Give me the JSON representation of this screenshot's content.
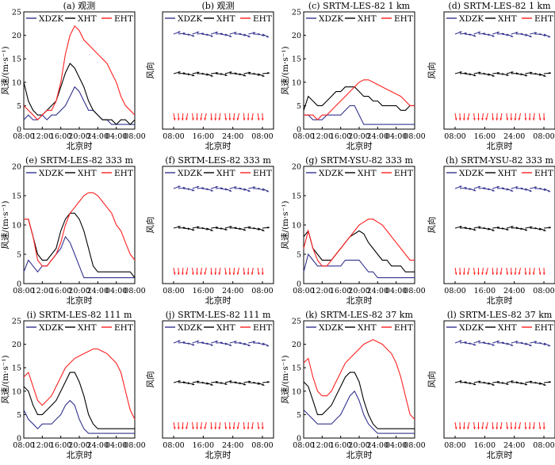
{
  "legend": [
    "XDZK",
    "XHT",
    "EHT"
  ],
  "ylabel_speed": "风速/(m·s⁻¹)",
  "ylabel_dir": "风向",
  "xlabel": "北京时",
  "colors": {
    "XDZK": "#33338f",
    "XHT": "#000000",
    "EHT": "#ff2020"
  },
  "x_ticks_time": [
    "08:00",
    "12:00",
    "16:00",
    "20:00",
    "24:00",
    "04:00",
    "08:00"
  ],
  "x_ticks_dir": [
    "08:00",
    "16:00",
    "24:00",
    "08:00"
  ],
  "panels": [
    {
      "title": "(a) 观测"
    },
    {
      "title": "(b) 观测"
    },
    {
      "title": "(c) SRTM-LES-82  1 km"
    },
    {
      "title": "(d) SRTM-LES-82  1 km"
    },
    {
      "title": "(e) SRTM-LES-82  333 m"
    },
    {
      "title": "(f) SRTM-LES-82  333 m"
    },
    {
      "title": "(g) SRTM-YSU-82  333 m"
    },
    {
      "title": "(h) SRTM-YSU-82  333 m"
    },
    {
      "title": "(i) SRTM-LES-82  111 m"
    },
    {
      "title": "(j) SRTM-LES-82  111 m"
    },
    {
      "title": "(k) SRTM-LES-82  37 km"
    },
    {
      "title": "(l) SRTM-LES-82  37 km"
    }
  ],
  "chart_data": [
    {
      "type": "line",
      "title": "(a) 观测",
      "xlabel": "北京时",
      "ylabel": "风速/(m·s⁻¹)",
      "ylim": [
        0,
        25
      ],
      "yticks": [
        0,
        5,
        10,
        15,
        20,
        25
      ],
      "xlim": [
        0,
        24
      ],
      "series": [
        {
          "name": "XDZK",
          "x": [
            0,
            1,
            2,
            3,
            4,
            5,
            6,
            7,
            8,
            9,
            10,
            11,
            12,
            13,
            14,
            15,
            16,
            17,
            18,
            19,
            20,
            21,
            22,
            23,
            24
          ],
          "values": [
            2,
            3,
            2,
            2,
            3,
            2,
            3,
            3,
            4,
            5,
            7,
            9,
            8,
            6,
            4,
            4,
            3,
            2,
            2,
            1,
            1,
            1,
            1,
            1,
            1
          ]
        },
        {
          "name": "XHT",
          "x": [
            0,
            1,
            2,
            3,
            4,
            5,
            6,
            7,
            8,
            9,
            10,
            11,
            12,
            13,
            14,
            15,
            16,
            17,
            18,
            19,
            20,
            21,
            22,
            23,
            24
          ],
          "values": [
            10,
            6,
            4,
            3,
            3,
            4,
            5,
            6,
            9,
            12,
            14,
            13,
            11,
            9,
            6,
            4,
            3,
            2,
            2,
            2,
            1,
            2,
            2,
            1,
            2
          ]
        },
        {
          "name": "EHT",
          "x": [
            0,
            1,
            2,
            3,
            4,
            5,
            6,
            7,
            8,
            9,
            10,
            11,
            12,
            13,
            14,
            15,
            16,
            17,
            18,
            19,
            20,
            21,
            22,
            23,
            24
          ],
          "values": [
            5,
            4,
            3,
            2,
            3,
            4,
            4,
            6,
            10,
            16,
            20,
            22,
            21,
            19,
            18,
            17,
            16,
            15,
            14,
            12,
            10,
            7,
            5,
            4,
            3
          ]
        }
      ]
    },
    {
      "type": "line",
      "title": "(c) SRTM-LES-82  1 km",
      "xlabel": "北京时",
      "ylabel": "风速/(m·s⁻¹)",
      "ylim": [
        0,
        25
      ],
      "yticks": [
        0,
        5,
        10,
        15,
        20,
        25
      ],
      "xlim": [
        0,
        24
      ],
      "series": [
        {
          "name": "XDZK",
          "x": [
            0,
            1,
            2,
            3,
            4,
            5,
            6,
            7,
            8,
            9,
            10,
            11,
            12,
            13,
            14,
            15,
            16,
            17,
            18,
            19,
            20,
            21,
            22,
            23,
            24
          ],
          "values": [
            3,
            3,
            2,
            2,
            2,
            3,
            3,
            3,
            3,
            4,
            5,
            5,
            3,
            1,
            1,
            1,
            1,
            1,
            1,
            1,
            1,
            1,
            1,
            1,
            1
          ]
        },
        {
          "name": "XHT",
          "x": [
            0,
            1,
            2,
            3,
            4,
            5,
            6,
            7,
            8,
            9,
            10,
            11,
            12,
            13,
            14,
            15,
            16,
            17,
            18,
            19,
            20,
            21,
            22,
            23,
            24
          ],
          "values": [
            4,
            7,
            6,
            5,
            5,
            6,
            7,
            8,
            8,
            9,
            9,
            9,
            8,
            7,
            7,
            6,
            6,
            5,
            5,
            5,
            5,
            4,
            4,
            5,
            5
          ]
        },
        {
          "name": "EHT",
          "x": [
            0,
            1,
            2,
            3,
            4,
            5,
            6,
            7,
            8,
            9,
            10,
            11,
            12,
            13,
            14,
            15,
            16,
            17,
            18,
            19,
            20,
            21,
            22,
            23,
            24
          ],
          "values": [
            3,
            3,
            3,
            2,
            3,
            3,
            4,
            5,
            6,
            7,
            8,
            9,
            10,
            10.5,
            10.5,
            10,
            9.5,
            9,
            8.5,
            8,
            7.5,
            7,
            6,
            5,
            5
          ]
        }
      ]
    },
    {
      "type": "line",
      "title": "(e) SRTM-LES-82  333 m",
      "xlabel": "北京时",
      "ylabel": "风速/(m·s⁻¹)",
      "ylim": [
        0,
        20
      ],
      "yticks": [
        0,
        5,
        10,
        15,
        20
      ],
      "xlim": [
        0,
        24
      ],
      "series": [
        {
          "name": "XDZK",
          "x": [
            0,
            1,
            2,
            3,
            4,
            5,
            6,
            7,
            8,
            9,
            10,
            11,
            12,
            13,
            14,
            15,
            16,
            17,
            18,
            19,
            20,
            21,
            22,
            23,
            24
          ],
          "values": [
            2,
            4,
            3,
            2,
            3,
            3,
            4,
            5,
            6,
            8,
            7,
            5,
            3,
            1,
            1,
            1,
            1,
            1,
            1,
            1,
            1,
            1,
            1,
            1,
            1
          ]
        },
        {
          "name": "XHT",
          "x": [
            0,
            1,
            2,
            3,
            4,
            5,
            6,
            7,
            8,
            9,
            10,
            11,
            12,
            13,
            14,
            15,
            16,
            17,
            18,
            19,
            20,
            21,
            22,
            23,
            24
          ],
          "values": [
            11,
            11,
            8,
            5,
            4,
            4,
            5,
            6,
            9,
            11,
            12,
            12,
            11,
            9,
            6,
            3,
            2,
            2,
            2,
            2,
            2,
            2,
            2,
            2,
            1
          ]
        },
        {
          "name": "EHT",
          "x": [
            0,
            1,
            2,
            3,
            4,
            5,
            6,
            7,
            8,
            9,
            10,
            11,
            12,
            13,
            14,
            15,
            16,
            17,
            18,
            19,
            20,
            21,
            22,
            23,
            24
          ],
          "values": [
            11,
            11,
            8,
            4,
            3,
            3,
            4,
            5,
            7,
            10,
            12,
            13,
            14,
            15,
            15.5,
            15.5,
            15,
            14,
            13,
            12,
            10,
            9,
            7,
            5,
            4
          ]
        }
      ]
    },
    {
      "type": "line",
      "title": "(g) SRTM-YSU-82  333 m",
      "xlabel": "北京时",
      "ylabel": "风速/(m·s⁻¹)",
      "ylim": [
        0,
        20
      ],
      "yticks": [
        0,
        5,
        10,
        15,
        20
      ],
      "xlim": [
        0,
        24
      ],
      "series": [
        {
          "name": "XDZK",
          "x": [
            0,
            1,
            2,
            3,
            4,
            5,
            6,
            7,
            8,
            9,
            10,
            11,
            12,
            13,
            14,
            15,
            16,
            17,
            18,
            19,
            20,
            21,
            22,
            23,
            24
          ],
          "values": [
            2,
            5,
            4,
            3,
            3,
            3,
            3,
            3,
            3,
            4,
            4,
            4,
            4,
            3,
            2,
            2,
            1,
            1,
            1,
            1,
            1,
            1,
            1,
            1,
            1
          ]
        },
        {
          "name": "XHT",
          "x": [
            0,
            1,
            2,
            3,
            4,
            5,
            6,
            7,
            8,
            9,
            10,
            11,
            12,
            13,
            14,
            15,
            16,
            17,
            18,
            19,
            20,
            21,
            22,
            23,
            24
          ],
          "values": [
            8,
            9,
            6,
            5,
            4,
            4,
            4,
            5,
            6,
            7,
            8,
            8.5,
            9,
            8.5,
            7,
            6,
            5,
            4,
            4,
            3,
            3,
            3,
            2,
            2,
            2
          ]
        },
        {
          "name": "EHT",
          "x": [
            0,
            1,
            2,
            3,
            4,
            5,
            6,
            7,
            8,
            9,
            10,
            11,
            12,
            13,
            14,
            15,
            16,
            17,
            18,
            19,
            20,
            21,
            22,
            23,
            24
          ],
          "values": [
            6,
            9,
            6,
            4,
            3,
            3,
            4,
            5,
            6,
            7,
            8,
            9,
            10,
            10.5,
            11,
            11,
            10.5,
            10,
            9,
            8,
            7,
            6,
            5,
            4,
            4
          ]
        }
      ]
    },
    {
      "type": "line",
      "title": "(i) SRTM-LES-82  111 m",
      "xlabel": "北京时",
      "ylabel": "风速/(m·s⁻¹)",
      "ylim": [
        0,
        25
      ],
      "yticks": [
        0,
        5,
        10,
        15,
        20,
        25
      ],
      "xlim": [
        0,
        24
      ],
      "series": [
        {
          "name": "XDZK",
          "x": [
            0,
            1,
            2,
            3,
            4,
            5,
            6,
            7,
            8,
            9,
            10,
            11,
            12,
            13,
            14,
            15,
            16,
            17,
            18,
            19,
            20,
            21,
            22,
            23,
            24
          ],
          "values": [
            6,
            4,
            3,
            2,
            3,
            3,
            3,
            4,
            5,
            7,
            8,
            7,
            4,
            2,
            1,
            1,
            1,
            1,
            1,
            1,
            1,
            1,
            1,
            1,
            1
          ]
        },
        {
          "name": "XHT",
          "x": [
            0,
            1,
            2,
            3,
            4,
            5,
            6,
            7,
            8,
            9,
            10,
            11,
            12,
            13,
            14,
            15,
            16,
            17,
            18,
            19,
            20,
            21,
            22,
            23,
            24
          ],
          "values": [
            11,
            10,
            7,
            5,
            5,
            6,
            7,
            8,
            10,
            12,
            14,
            14,
            12,
            9,
            5,
            3,
            2,
            2,
            2,
            2,
            2,
            2,
            2,
            2,
            2
          ]
        },
        {
          "name": "EHT",
          "x": [
            0,
            1,
            2,
            3,
            4,
            5,
            6,
            7,
            8,
            9,
            10,
            11,
            12,
            13,
            14,
            15,
            16,
            17,
            18,
            19,
            20,
            21,
            22,
            23,
            24
          ],
          "values": [
            13,
            14,
            11,
            8,
            7,
            8,
            9,
            11,
            13,
            15,
            16,
            17,
            17.5,
            18,
            18.5,
            19,
            19,
            18.5,
            18,
            17,
            16,
            14,
            10,
            6,
            4
          ]
        }
      ]
    },
    {
      "type": "line",
      "title": "(k) SRTM-LES-82  37 km",
      "xlabel": "北京时",
      "ylabel": "风速/(m·s⁻¹)",
      "ylim": [
        0,
        25
      ],
      "yticks": [
        0,
        5,
        10,
        15,
        20,
        25
      ],
      "xlim": [
        0,
        24
      ],
      "series": [
        {
          "name": "XDZK",
          "x": [
            0,
            1,
            2,
            3,
            4,
            5,
            6,
            7,
            8,
            9,
            10,
            11,
            12,
            13,
            14,
            15,
            16,
            17,
            18,
            19,
            20,
            21,
            22,
            23,
            24
          ],
          "values": [
            6,
            5,
            4,
            3,
            3,
            3,
            3,
            4,
            5,
            7,
            9,
            10,
            8,
            5,
            3,
            2,
            1,
            1,
            1,
            1,
            1,
            1,
            1,
            1,
            1
          ]
        },
        {
          "name": "XHT",
          "x": [
            0,
            1,
            2,
            3,
            4,
            5,
            6,
            7,
            8,
            9,
            10,
            11,
            12,
            13,
            14,
            15,
            16,
            17,
            18,
            19,
            20,
            21,
            22,
            23,
            24
          ],
          "values": [
            12,
            11,
            8,
            5,
            5,
            6,
            7,
            9,
            11,
            13,
            14,
            14,
            12,
            8,
            5,
            3,
            2,
            2,
            2,
            2,
            2,
            2,
            2,
            2,
            2
          ]
        },
        {
          "name": "EHT",
          "x": [
            0,
            1,
            2,
            3,
            4,
            5,
            6,
            7,
            8,
            9,
            10,
            11,
            12,
            13,
            14,
            15,
            16,
            17,
            18,
            19,
            20,
            21,
            22,
            23,
            24
          ],
          "values": [
            16,
            17,
            13,
            10,
            9,
            9,
            10,
            12,
            14,
            16,
            17,
            18,
            19,
            20,
            20.5,
            21,
            20.5,
            20,
            19,
            18,
            16,
            13,
            9,
            5,
            4
          ]
        }
      ]
    }
  ]
}
